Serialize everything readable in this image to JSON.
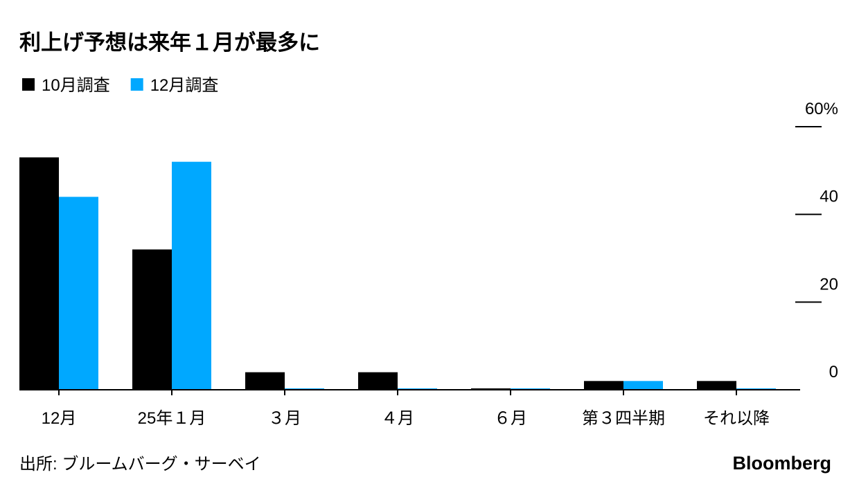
{
  "chart_data": {
    "type": "bar",
    "title": "利上げ予想は来年１月が最多に",
    "categories": [
      "12月",
      "25年１月",
      "３月",
      "４月",
      "６月",
      "第３四半期",
      "それ以降"
    ],
    "series": [
      {
        "name": "10月調査",
        "color": "#000000",
        "values": [
          53,
          32,
          4,
          4,
          0,
          2,
          2
        ]
      },
      {
        "name": "12月調査",
        "color": "#00a8ff",
        "values": [
          44,
          52,
          0,
          0,
          0,
          2,
          0
        ]
      }
    ],
    "ylim": [
      0,
      60
    ],
    "yticks": [
      0,
      20,
      40,
      {
        "value": 60,
        "label": "60%"
      }
    ],
    "source": "出所: ブルームバーグ・サーベイ",
    "brand": "Bloomberg"
  }
}
